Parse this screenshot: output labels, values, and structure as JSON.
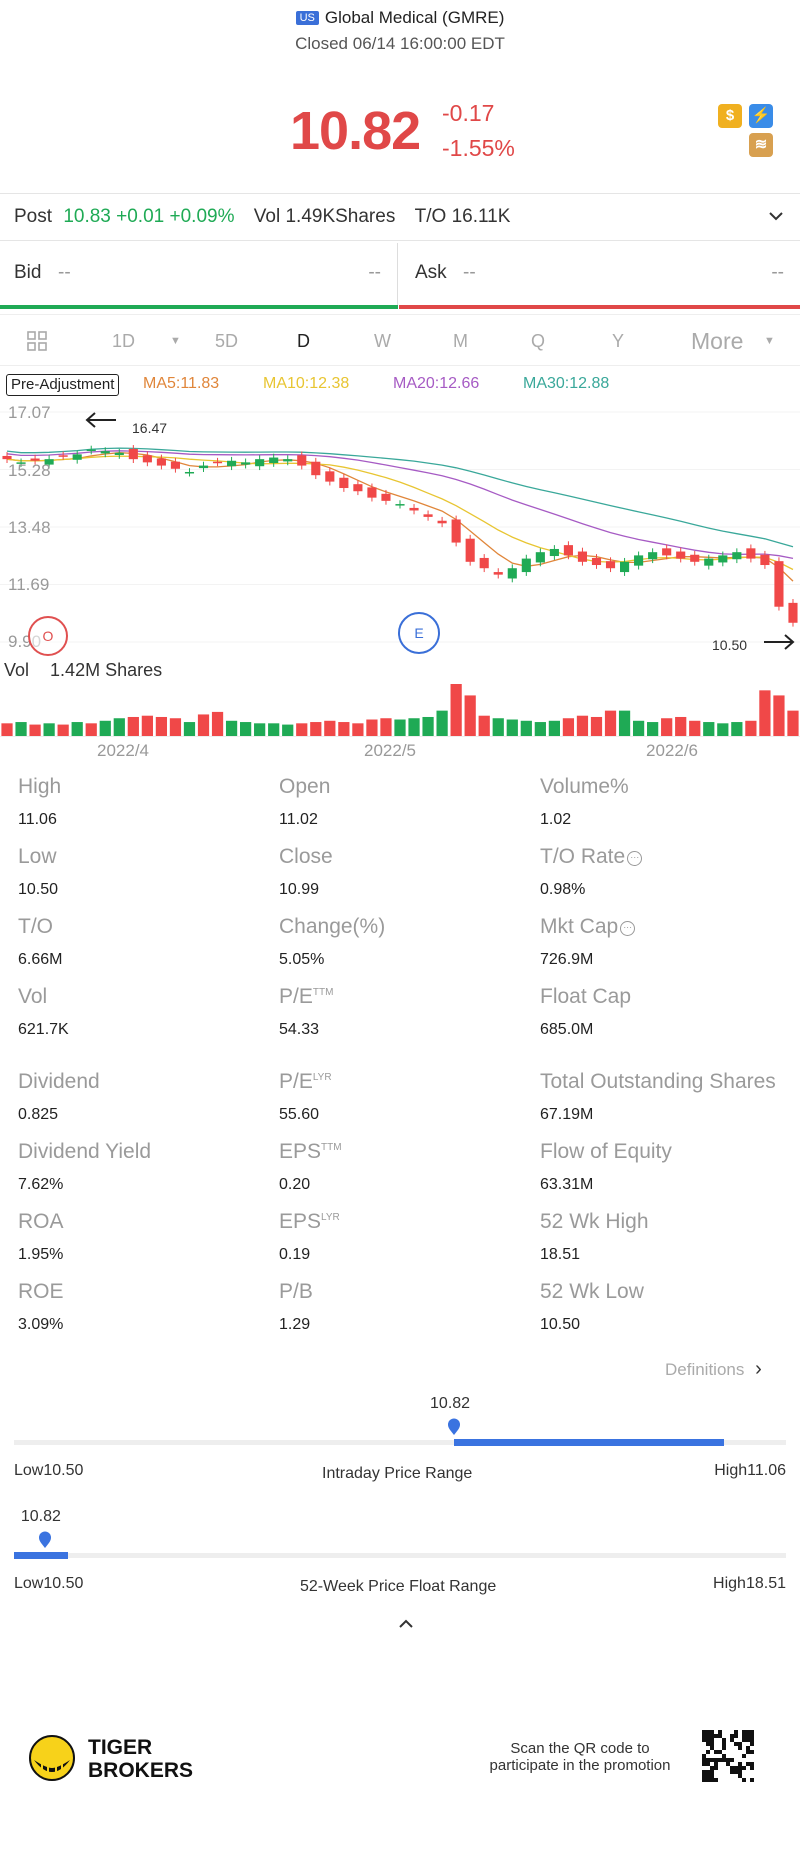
{
  "header": {
    "market_badge": "US",
    "title": "Global Medical (GMRE)",
    "status": "Closed 06/14 16:00:00 EDT"
  },
  "quote": {
    "price": "10.82",
    "change": "-0.17",
    "change_pct": "-1.55%",
    "color": "#e04848"
  },
  "post_bar": {
    "label": "Post",
    "post_price": "10.83",
    "post_change": "+0.01",
    "post_change_pct": "+0.09%",
    "vol_label": "Vol",
    "vol_value": "1.49KShares",
    "to_label": "T/O",
    "to_value": "16.11K"
  },
  "bid_ask": {
    "bid_label": "Bid",
    "bid_price": "--",
    "bid_size": "--",
    "ask_label": "Ask",
    "ask_price": "--",
    "ask_size": "--"
  },
  "periods": {
    "items": [
      "1D",
      "5D",
      "D",
      "W",
      "M",
      "Q",
      "Y"
    ],
    "active": "D",
    "more": "More"
  },
  "chart": {
    "pre_adjustment": "Pre-Adjustment",
    "ma5": "MA5:11.83",
    "ma10": "MA10:12.38",
    "ma20": "MA20:12.66",
    "ma30": "MA30:12.88",
    "ma_colors": {
      "ma5": "#e0863a",
      "ma10": "#e8c532",
      "ma20": "#a65bc4",
      "ma30": "#3aa89a"
    },
    "y_labels": [
      "17.07",
      "15.28",
      "13.48",
      "11.69",
      "9.90"
    ],
    "high_marker": "16.47",
    "low_marker": "10.50",
    "event_o": "O",
    "event_e": "E",
    "vol_label": "Vol",
    "vol_value": "1.42M Shares",
    "x_labels": [
      "2022/4",
      "2022/5",
      "2022/6"
    ]
  },
  "chart_data": {
    "type": "candlestick",
    "price_range": [
      9.9,
      17.07
    ],
    "closes": [
      15.6,
      15.5,
      15.55,
      15.6,
      15.7,
      15.75,
      15.9,
      15.85,
      15.8,
      15.6,
      15.5,
      15.4,
      15.3,
      15.2,
      15.4,
      15.5,
      15.55,
      15.5,
      15.6,
      15.65,
      15.6,
      15.4,
      15.1,
      14.9,
      14.7,
      14.6,
      14.4,
      14.3,
      14.2,
      14.0,
      13.8,
      13.6,
      13.0,
      12.4,
      12.2,
      12.0,
      12.2,
      12.5,
      12.7,
      12.8,
      12.6,
      12.4,
      12.3,
      12.2,
      12.4,
      12.6,
      12.7,
      12.6,
      12.5,
      12.4,
      12.5,
      12.6,
      12.7,
      12.5,
      12.3,
      11.0,
      10.5
    ],
    "volumes": [
      0.5,
      0.55,
      0.45,
      0.5,
      0.45,
      0.55,
      0.5,
      0.6,
      0.7,
      0.75,
      0.8,
      0.75,
      0.7,
      0.55,
      0.85,
      0.95,
      0.6,
      0.55,
      0.5,
      0.5,
      0.45,
      0.5,
      0.55,
      0.6,
      0.55,
      0.5,
      0.65,
      0.7,
      0.65,
      0.7,
      0.75,
      1.0,
      2.05,
      1.6,
      0.8,
      0.7,
      0.65,
      0.6,
      0.55,
      0.6,
      0.7,
      0.8,
      0.75,
      1.0,
      1.0,
      0.6,
      0.55,
      0.7,
      0.75,
      0.6,
      0.55,
      0.5,
      0.55,
      0.6,
      1.8,
      1.6,
      1.0
    ],
    "volume_colors_up": [
      false,
      true,
      false,
      true,
      false,
      true,
      false,
      true,
      true,
      false,
      false,
      false,
      false,
      true,
      false,
      false,
      true,
      true,
      true,
      true,
      true,
      false,
      false,
      false,
      false,
      false,
      false,
      false,
      true,
      true,
      true,
      true,
      false,
      false,
      false,
      true,
      true,
      true,
      true,
      true,
      false,
      false,
      false,
      false,
      true,
      true,
      true,
      false,
      false,
      false,
      true,
      true,
      true,
      false,
      false,
      false,
      false
    ]
  },
  "stats": [
    [
      {
        "label": "High",
        "value": "11.06"
      },
      {
        "label": "Open",
        "value": "11.02"
      },
      {
        "label": "Volume%",
        "value": "1.02"
      }
    ],
    [
      {
        "label": "Low",
        "value": "10.50"
      },
      {
        "label": "Close",
        "value": "10.99"
      },
      {
        "label": "T/O Rate",
        "value": "0.98%",
        "info": true
      }
    ],
    [
      {
        "label": "T/O",
        "value": "6.66M"
      },
      {
        "label": "Change(%)",
        "value": "5.05%"
      },
      {
        "label": "Mkt Cap",
        "value": "726.9M",
        "info": true
      }
    ],
    [
      {
        "label": "Vol",
        "value": "621.7K"
      },
      {
        "label": "P/E",
        "sup": "TTM",
        "value": "54.33"
      },
      {
        "label": "Float Cap",
        "value": "685.0M"
      }
    ],
    [
      {
        "label": "Dividend",
        "value": "0.825"
      },
      {
        "label": "P/E",
        "sup": "LYR",
        "value": "55.60"
      },
      {
        "label": "Total Outstanding Shares",
        "value": "67.19M"
      }
    ],
    [
      {
        "label": "Dividend Yield",
        "value": "7.62%"
      },
      {
        "label": "EPS",
        "sup": "TTM",
        "value": "0.20"
      },
      {
        "label": "Flow of Equity",
        "value": "63.31M"
      }
    ],
    [
      {
        "label": "ROA",
        "value": "1.95%"
      },
      {
        "label": "EPS",
        "sup": "LYR",
        "value": "0.19"
      },
      {
        "label": "52 Wk High",
        "value": "18.51"
      }
    ],
    [
      {
        "label": "ROE",
        "value": "3.09%"
      },
      {
        "label": "P/B",
        "value": "1.29"
      },
      {
        "label": "52 Wk Low",
        "value": "10.50"
      }
    ]
  ],
  "definitions": "Definitions",
  "intraday": {
    "current": "10.82",
    "low": "Low10.50",
    "high": "High11.06",
    "title": "Intraday Price Range",
    "fill_fraction_start": 0.57,
    "fill_fraction_end": 0.92,
    "pin_fraction": 0.57
  },
  "week52": {
    "current": "10.82",
    "low": "Low10.50",
    "high": "High18.51",
    "title": "52-Week Price Float Range",
    "fill_fraction_start": 0.0,
    "fill_fraction_end": 0.07,
    "pin_fraction": 0.04
  },
  "footer": {
    "brand_line1": "TIGER",
    "brand_line2": "BROKERS",
    "promo_line1": "Scan the QR code to",
    "promo_line2": "participate in the promotion"
  }
}
